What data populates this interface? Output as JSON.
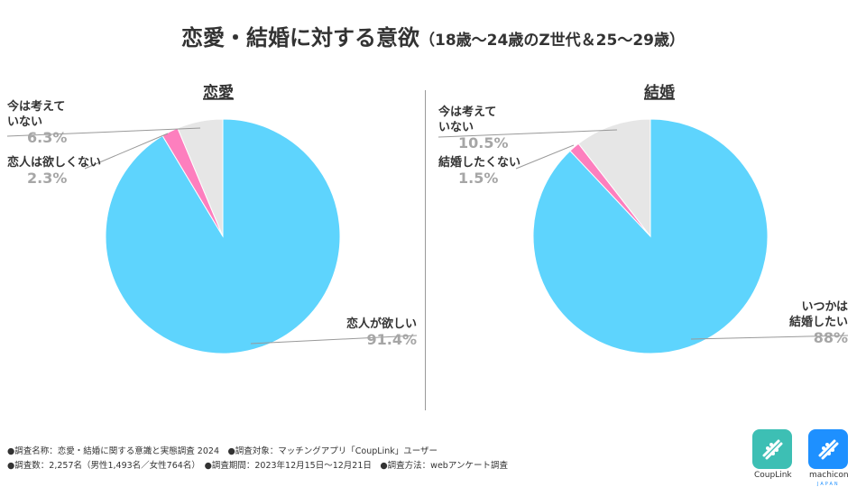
{
  "title": "恋愛・結婚に対する意欲",
  "subtitle": "（18歳～24歳のZ世代＆25～29歳）",
  "colors": {
    "main": "#5ed4fd",
    "pink": "#fd7fbe",
    "gray": "#e6e6e6",
    "label_value": "#a6a6a6",
    "leader": "#999999"
  },
  "chart_data": [
    {
      "type": "pie",
      "title": "恋愛",
      "slices": [
        {
          "label": "恋人が欲しい",
          "value": 91.4,
          "value_text": "91.4%",
          "color": "#5ed4fd"
        },
        {
          "label": "恋人は欲しくない",
          "value": 2.3,
          "value_text": "2.3%",
          "color": "#fd7fbe"
        },
        {
          "label": "今は考えて\nいない",
          "value": 6.3,
          "value_text": "6.3%",
          "color": "#e6e6e6"
        }
      ]
    },
    {
      "type": "pie",
      "title": "結婚",
      "slices": [
        {
          "label": "いつかは\n結婚したい",
          "value": 88,
          "value_text": "88%",
          "color": "#5ed4fd"
        },
        {
          "label": "結婚したくない",
          "value": 1.5,
          "value_text": "1.5%",
          "color": "#fd7fbe"
        },
        {
          "label": "今は考えて\nいない",
          "value": 10.5,
          "value_text": "10.5%",
          "color": "#e6e6e6"
        }
      ]
    }
  ],
  "footnotes": [
    "●調査名称：恋愛・結婚に関する意識と実態調査 2024　●調査対象：マッチングアプリ「CoupLink」ユーザー",
    "●調査数：2,257名（男性1,493名／女性764名）　●調査期間：2023年12月15日～12月21日　●調査方法：webアンケート調査"
  ],
  "logos": [
    {
      "name": "CoupLink",
      "color": "#3dbfb4"
    },
    {
      "name": "machicon",
      "sub": "JAPAN",
      "color": "#1e90ff"
    }
  ]
}
